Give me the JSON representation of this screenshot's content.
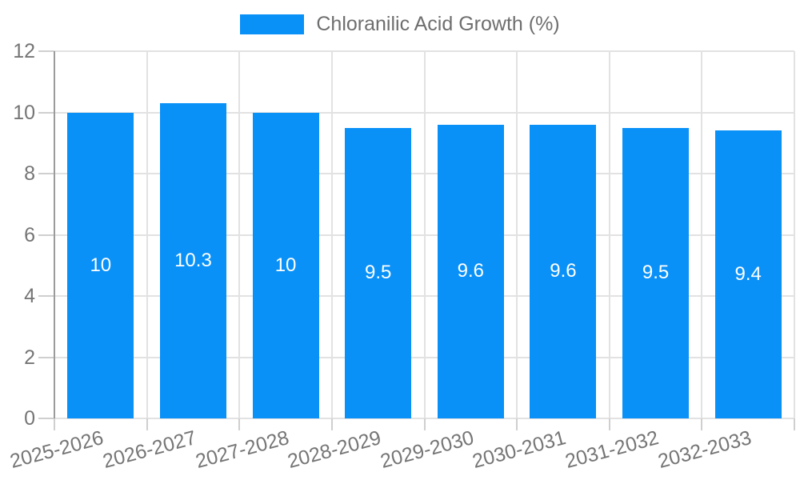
{
  "chart_data": {
    "type": "bar",
    "title": "",
    "legend": {
      "label": "Chloranilic Acid Growth (%)",
      "position": "top"
    },
    "categories": [
      "2025-2026",
      "2026-2027",
      "2027-2028",
      "2028-2029",
      "2029-2030",
      "2030-2031",
      "2031-2032",
      "2032-2033"
    ],
    "series": [
      {
        "name": "Chloranilic Acid Growth (%)",
        "values": [
          10,
          10.3,
          10,
          9.5,
          9.6,
          9.6,
          9.5,
          9.4
        ],
        "bar_labels": [
          "10",
          "10.3",
          "10",
          "9.5",
          "9.6",
          "9.6",
          "9.5",
          "9.4"
        ]
      }
    ],
    "xlabel": "",
    "ylabel": "",
    "ylim": [
      0,
      12
    ],
    "yticks": [
      0,
      2,
      4,
      6,
      8,
      10,
      12
    ],
    "grid": true,
    "x_tick_rotation_deg": -15,
    "colors": {
      "bar": "#0a91f8",
      "bar_label_text": "#ffffff",
      "axis_text": "#757575",
      "legend_text": "#6e6e6e",
      "gridline": "#e2e2e2",
      "tick": "#cfcfcf",
      "axis_line": "#9b9b9b",
      "background": "#ffffff"
    }
  }
}
